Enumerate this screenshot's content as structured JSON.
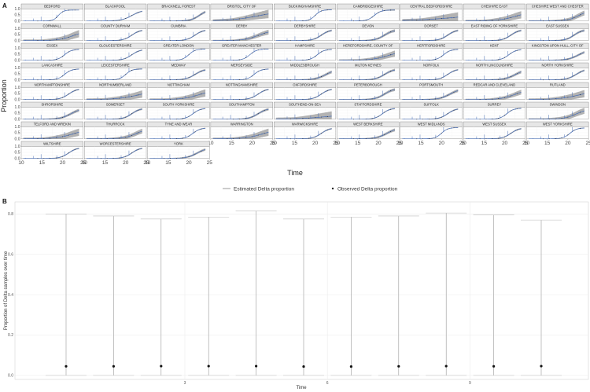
{
  "chart_data": [
    {
      "panel": "A",
      "type": "line",
      "xlabel": "Time",
      "ylabel": "Proportion",
      "xlim": [
        10,
        25
      ],
      "ylim": [
        0,
        1
      ],
      "x_ticks": [
        "10",
        "15",
        "20",
        "25"
      ],
      "y_ticks": [
        "0",
        "0.5",
        "1"
      ],
      "y_tick_labels_shown": [
        "1.0",
        "0.5",
        "0.0"
      ],
      "colors": {
        "estimated": "#4a6fb5",
        "band": "#9a9a9a",
        "observed": "#222222",
        "strip": "#e6e6e6"
      },
      "facets": [
        {
          "name": "BEDFORD",
          "start": 17.5,
          "steep": 1.6,
          "max": 0.9,
          "band": 0.02
        },
        {
          "name": "BLACKPOOL",
          "start": 20,
          "steep": 0.8,
          "max": 0.9,
          "band": 0.05
        },
        {
          "name": "BRACKNELL FOREST",
          "start": 21,
          "steep": 1.0,
          "max": 0.9,
          "band": 0.1
        },
        {
          "name": "BRISTOL, CITY OF",
          "start": 20,
          "steep": 0.3,
          "max": 0.85,
          "band": 0.35
        },
        {
          "name": "BUCKINGHAMSHIRE",
          "start": 18.5,
          "steep": 1.4,
          "max": 0.92,
          "band": 0.03
        },
        {
          "name": "CAMBRIDGESHIRE",
          "start": 17.5,
          "steep": 1.2,
          "max": 0.9,
          "band": 0.05
        },
        {
          "name": "CENTRAL BEDFORDSHIRE",
          "start": 22,
          "steep": 0.2,
          "max": 0.6,
          "band": 0.4
        },
        {
          "name": "CHESHIRE EAST",
          "start": 21,
          "steep": 0.5,
          "max": 0.75,
          "band": 0.3
        },
        {
          "name": "CHESHIRE WEST AND CHESTER",
          "start": 21,
          "steep": 0.8,
          "max": 0.85,
          "band": 0.2
        },
        {
          "name": "CORNWALL",
          "start": 21,
          "steep": 0.6,
          "max": 0.8,
          "band": 0.3
        },
        {
          "name": "COUNTY DURHAM",
          "start": 20,
          "steep": 1.0,
          "max": 0.9,
          "band": 0.06
        },
        {
          "name": "CUMBRIA",
          "start": 20,
          "steep": 1.0,
          "max": 0.9,
          "band": 0.06
        },
        {
          "name": "DERBY",
          "start": 20,
          "steep": 0.6,
          "max": 0.85,
          "band": 0.2
        },
        {
          "name": "DERBYSHIRE",
          "start": 20,
          "steep": 1.0,
          "max": 0.9,
          "band": 0.08
        },
        {
          "name": "DEVON",
          "start": 20,
          "steep": 0.9,
          "max": 0.9,
          "band": 0.12
        },
        {
          "name": "DORSET",
          "start": 20,
          "steep": 1.0,
          "max": 0.9,
          "band": 0.08
        },
        {
          "name": "EAST RIDING OF YORKSHIRE",
          "start": 20,
          "steep": 1.0,
          "max": 0.9,
          "band": 0.08
        },
        {
          "name": "EAST SUSSEX",
          "start": 20,
          "steep": 1.0,
          "max": 0.9,
          "band": 0.1
        },
        {
          "name": "ESSEX",
          "start": 19,
          "steep": 1.2,
          "max": 0.9,
          "band": 0.04
        },
        {
          "name": "GLOUCESTERSHIRE",
          "start": 20,
          "steep": 1.0,
          "max": 0.9,
          "band": 0.05
        },
        {
          "name": "GREATER LONDON",
          "start": 18.5,
          "steep": 1.3,
          "max": 0.92,
          "band": 0.02
        },
        {
          "name": "GREATER MANCHESTER",
          "start": 18,
          "steep": 1.2,
          "max": 0.92,
          "band": 0.02
        },
        {
          "name": "HAMPSHIRE",
          "start": 19,
          "steep": 1.2,
          "max": 0.9,
          "band": 0.04
        },
        {
          "name": "HEREFORDSHIRE, COUNTY OF",
          "start": 21,
          "steep": 0.5,
          "max": 0.8,
          "band": 0.25
        },
        {
          "name": "HERTFORDSHIRE",
          "start": 19,
          "steep": 1.2,
          "max": 0.9,
          "band": 0.04
        },
        {
          "name": "KENT",
          "start": 19.5,
          "steep": 1.1,
          "max": 0.9,
          "band": 0.04
        },
        {
          "name": "KINGSTON UPON HULL, CITY OF",
          "start": 21,
          "steep": 0.8,
          "max": 0.85,
          "band": 0.1
        },
        {
          "name": "LANCASHIRE",
          "start": 19,
          "steep": 1.2,
          "max": 0.9,
          "band": 0.03
        },
        {
          "name": "LEICESTERSHIRE",
          "start": 18.5,
          "steep": 1.3,
          "max": 0.9,
          "band": 0.04
        },
        {
          "name": "MEDWAY",
          "start": 20,
          "steep": 0.9,
          "max": 0.9,
          "band": 0.08
        },
        {
          "name": "MERSEYSIDE",
          "start": 19,
          "steep": 1.2,
          "max": 0.9,
          "band": 0.03
        },
        {
          "name": "MIDDLESBROUGH",
          "start": 21,
          "steep": 0.8,
          "max": 0.85,
          "band": 0.12
        },
        {
          "name": "MILTON KEYNES",
          "start": 20,
          "steep": 0.9,
          "max": 0.9,
          "band": 0.1
        },
        {
          "name": "NORFOLK",
          "start": 20,
          "steep": 1.0,
          "max": 0.9,
          "band": 0.06
        },
        {
          "name": "NORTH LINCOLNSHIRE",
          "start": 21,
          "steep": 0.8,
          "max": 0.85,
          "band": 0.12
        },
        {
          "name": "NORTH YORKSHIRE",
          "start": 20.5,
          "steep": 0.9,
          "max": 0.9,
          "band": 0.08
        },
        {
          "name": "NORTHAMPTONSHIRE",
          "start": 20,
          "steep": 1.0,
          "max": 0.9,
          "band": 0.06
        },
        {
          "name": "NORTHUMBERLAND",
          "start": 21.5,
          "steep": 0.4,
          "max": 0.75,
          "band": 0.3
        },
        {
          "name": "NOTTINGHAM",
          "start": 21,
          "steep": 0.5,
          "max": 0.8,
          "band": 0.3
        },
        {
          "name": "NOTTINGHAMSHIRE",
          "start": 20,
          "steep": 1.0,
          "max": 0.9,
          "band": 0.06
        },
        {
          "name": "OXFORDSHIRE",
          "start": 20,
          "steep": 1.0,
          "max": 0.9,
          "band": 0.06
        },
        {
          "name": "PETERBOROUGH",
          "start": 20,
          "steep": 0.9,
          "max": 0.9,
          "band": 0.12
        },
        {
          "name": "PORTSMOUTH",
          "start": 20.5,
          "steep": 0.8,
          "max": 0.88,
          "band": 0.12
        },
        {
          "name": "REDCAR AND CLEVELAND",
          "start": 21,
          "steep": 0.6,
          "max": 0.85,
          "band": 0.2
        },
        {
          "name": "RUTLAND",
          "start": 21.5,
          "steep": 0.4,
          "max": 0.8,
          "band": 0.3
        },
        {
          "name": "SHROPSHIRE",
          "start": 20.5,
          "steep": 0.8,
          "max": 0.88,
          "band": 0.12
        },
        {
          "name": "SOMERSET",
          "start": 20,
          "steep": 1.0,
          "max": 0.9,
          "band": 0.08
        },
        {
          "name": "SOUTH YORKSHIRE",
          "start": 19.5,
          "steep": 1.1,
          "max": 0.9,
          "band": 0.04
        },
        {
          "name": "SOUTHAMPTON",
          "start": 20,
          "steep": 0.9,
          "max": 0.9,
          "band": 0.1
        },
        {
          "name": "SOUTHEND-ON-SEA",
          "start": 21,
          "steep": 0.3,
          "max": 0.4,
          "band": 0.4
        },
        {
          "name": "STAFFORDSHIRE",
          "start": 19.5,
          "steep": 1.1,
          "max": 0.9,
          "band": 0.05
        },
        {
          "name": "SUFFOLK",
          "start": 20,
          "steep": 1.0,
          "max": 0.9,
          "band": 0.06
        },
        {
          "name": "SURREY",
          "start": 19,
          "steep": 1.2,
          "max": 0.9,
          "band": 0.04
        },
        {
          "name": "SWINDON",
          "start": 20.5,
          "steep": 0.7,
          "max": 0.85,
          "band": 0.25
        },
        {
          "name": "TELFORD AND WREKIN",
          "start": 21,
          "steep": 0.5,
          "max": 0.8,
          "band": 0.3
        },
        {
          "name": "THURROCK",
          "start": 21,
          "steep": 0.7,
          "max": 0.85,
          "band": 0.2
        },
        {
          "name": "TYNE AND WEAR",
          "start": 19.5,
          "steep": 1.1,
          "max": 0.9,
          "band": 0.04
        },
        {
          "name": "WARRINGTON",
          "start": 21,
          "steep": 0.5,
          "max": 0.8,
          "band": 0.3
        },
        {
          "name": "WARWICKSHIRE",
          "start": 20,
          "steep": 1.0,
          "max": 0.9,
          "band": 0.06
        },
        {
          "name": "WEST BERKSHIRE",
          "start": 20.5,
          "steep": 0.8,
          "max": 0.88,
          "band": 0.12
        },
        {
          "name": "WEST MIDLANDS",
          "start": 18.5,
          "steep": 1.3,
          "max": 0.92,
          "band": 0.02
        },
        {
          "name": "WEST SUSSEX",
          "start": 20,
          "steep": 1.0,
          "max": 0.9,
          "band": 0.06
        },
        {
          "name": "WEST YORKSHIRE",
          "start": 19,
          "steep": 1.2,
          "max": 0.9,
          "band": 0.03
        },
        {
          "name": "WILTSHIRE",
          "start": 20,
          "steep": 1.0,
          "max": 0.9,
          "band": 0.06
        },
        {
          "name": "WORCESTERSHIRE",
          "start": 20,
          "steep": 1.0,
          "max": 0.9,
          "band": 0.06
        },
        {
          "name": "YORK",
          "start": 20.5,
          "steep": 0.8,
          "max": 0.88,
          "band": 0.1
        }
      ],
      "legend": {
        "position": "bottom",
        "entries": [
          "Estimated Delta proportion",
          "Observed Delta proportion"
        ]
      }
    },
    {
      "panel": "B",
      "type": "scatter",
      "xlabel": "Time",
      "ylabel": "Proportion of Delta samples over time",
      "ylim": [
        -0.02,
        0.86
      ],
      "y_ticks": [
        "0.0",
        "0.2",
        "0.4",
        "0.6",
        "0.8"
      ],
      "x_tick_labels": [
        "3",
        "6",
        "9"
      ],
      "points": [
        {
          "x": 1,
          "y": 0.045,
          "lower": 0.0,
          "upper": 0.8
        },
        {
          "x": 2,
          "y": 0.045,
          "lower": 0.0,
          "upper": 0.79
        },
        {
          "x": 3,
          "y": 0.046,
          "lower": 0.0,
          "upper": 0.775
        },
        {
          "x": 4,
          "y": 0.046,
          "lower": 0.0,
          "upper": 0.785
        },
        {
          "x": 5,
          "y": 0.046,
          "lower": 0.0,
          "upper": 0.815
        },
        {
          "x": 6,
          "y": 0.044,
          "lower": 0.0,
          "upper": 0.775
        },
        {
          "x": 7,
          "y": 0.044,
          "lower": 0.0,
          "upper": 0.785
        },
        {
          "x": 8,
          "y": 0.045,
          "lower": 0.0,
          "upper": 0.79
        },
        {
          "x": 9,
          "y": 0.046,
          "lower": 0.0,
          "upper": 0.805
        },
        {
          "x": 10,
          "y": 0.045,
          "lower": 0.0,
          "upper": 0.795
        },
        {
          "x": 11,
          "y": 0.046,
          "lower": 0.0,
          "upper": 0.77
        }
      ]
    }
  ]
}
